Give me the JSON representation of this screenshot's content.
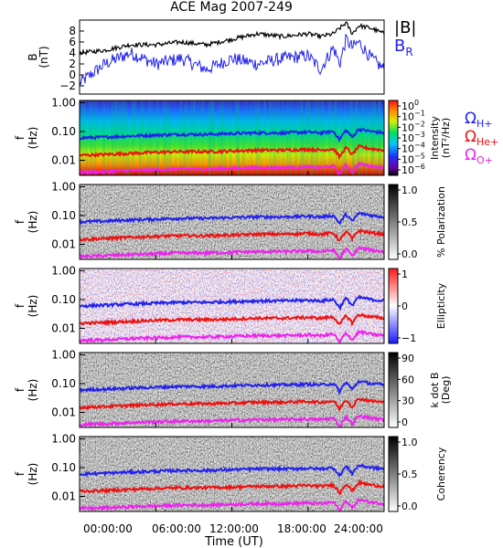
{
  "title": "ACE Mag 2007-249",
  "x_axis": {
    "label": "Time (UT)",
    "ticks": [
      "00:00:00",
      "06:00:00",
      "12:00:00",
      "18:00:00",
      "24:00:00"
    ],
    "range_hours": [
      0,
      24
    ]
  },
  "panels": [
    {
      "id": "field",
      "ylabel": "B",
      "yunit": "(nT)",
      "ticks": [
        "8",
        "6",
        "4",
        "2",
        "0",
        "−2"
      ],
      "tick_values": [
        8,
        6,
        4,
        2,
        0,
        -2
      ],
      "ylim": [
        -3.5,
        10
      ],
      "legend": [
        {
          "text": "|B|",
          "sub": "",
          "color": "#000000"
        },
        {
          "text": "B",
          "sub": "R",
          "color": "#2222ee"
        }
      ]
    },
    {
      "id": "intensity",
      "ylabel": "f",
      "yunit": "(Hz)",
      "ticks": [
        "1.00",
        "0.10",
        "0.01"
      ],
      "colorbar": {
        "type": "rainbow",
        "label_line1": "Intensity",
        "label_line2": "(nT²/Hz)",
        "ticks": [
          {
            "base": "10",
            "exp": "0"
          },
          {
            "base": "10",
            "exp": "−1"
          },
          {
            "base": "10",
            "exp": "−2"
          },
          {
            "base": "10",
            "exp": "−3"
          },
          {
            "base": "10",
            "exp": "−4"
          },
          {
            "base": "10",
            "exp": "−5"
          },
          {
            "base": "10",
            "exp": "−6"
          }
        ]
      },
      "legend": [
        {
          "text": "Ω",
          "sub": "H+",
          "color": "#2222ee"
        },
        {
          "text": "Ω",
          "sub": "He+",
          "color": "#ee1111"
        },
        {
          "text": "Ω",
          "sub": "O+",
          "color": "#ee22ee"
        }
      ]
    },
    {
      "id": "polarization",
      "ylabel": "f",
      "yunit": "(Hz)",
      "ticks": [
        "1.00",
        "0.10",
        "0.01"
      ],
      "colorbar": {
        "type": "gray",
        "label_line1": "% Polarization",
        "label_line2": "",
        "ticks": [
          {
            "base": "1.0"
          },
          {
            "base": "0.5"
          },
          {
            "base": "0.0"
          }
        ]
      }
    },
    {
      "id": "ellipticity",
      "ylabel": "f",
      "yunit": "(Hz)",
      "ticks": [
        "1.00",
        "0.10",
        "0.01"
      ],
      "colorbar": {
        "type": "bwr",
        "label_line1": "Ellipticity",
        "label_line2": "",
        "ticks": [
          {
            "base": "1"
          },
          {
            "base": "0"
          },
          {
            "base": "−1"
          }
        ]
      }
    },
    {
      "id": "kdotb",
      "ylabel": "f",
      "yunit": "(Hz)",
      "ticks": [
        "1.00",
        "0.10",
        "0.01"
      ],
      "colorbar": {
        "type": "gray",
        "label_line1": "k dot B",
        "label_line2": "(Deg)",
        "ticks": [
          {
            "base": "90"
          },
          {
            "base": "60"
          },
          {
            "base": "30"
          },
          {
            "base": "0"
          }
        ]
      }
    },
    {
      "id": "coherency",
      "ylabel": "f",
      "yunit": "(Hz)",
      "ticks": [
        "1.00",
        "0.10",
        "0.01"
      ],
      "colorbar": {
        "type": "gray",
        "label_line1": "Coherency",
        "label_line2": "",
        "ticks": [
          {
            "base": "1.0"
          },
          {
            "base": "0.5"
          },
          {
            "base": "0.0"
          }
        ]
      }
    }
  ],
  "colors": {
    "h_plus": "#2222ee",
    "he_plus": "#ee1111",
    "o_plus": "#ee22ee",
    "b_total": "#000000",
    "b_r": "#2222ee"
  },
  "chart_data": {
    "type": "line",
    "title": "ACE Mag 2007-249",
    "xlabel": "Time (UT)",
    "x_hours": [
      0,
      2,
      4,
      6,
      8,
      10,
      12,
      14,
      16,
      18,
      19,
      20,
      20.5,
      21,
      21.5,
      22,
      23,
      24
    ],
    "series": [
      {
        "name": "|B|",
        "unit": "nT",
        "values": [
          4.0,
          4.5,
          5.5,
          5.5,
          6.0,
          5.5,
          6.5,
          7.5,
          7.0,
          7.5,
          7.0,
          7.5,
          8.5,
          9.5,
          7.5,
          9.0,
          8.5,
          7.5
        ]
      },
      {
        "name": "B_R",
        "unit": "nT",
        "values": [
          -1.5,
          2.0,
          4.0,
          2.0,
          3.0,
          1.0,
          3.0,
          2.0,
          3.0,
          3.5,
          1.0,
          5.0,
          2.0,
          6.5,
          5.0,
          6.0,
          3.0,
          1.0
        ]
      },
      {
        "name": "Ω_H+",
        "unit": "Hz",
        "values": [
          0.06,
          0.064,
          0.07,
          0.075,
          0.08,
          0.08,
          0.085,
          0.09,
          0.09,
          0.095,
          0.09,
          0.1,
          0.05,
          0.11,
          0.06,
          0.12,
          0.1,
          0.09
        ]
      },
      {
        "name": "Ω_He+",
        "unit": "Hz",
        "values": [
          0.015,
          0.016,
          0.0175,
          0.019,
          0.02,
          0.02,
          0.021,
          0.0225,
          0.0225,
          0.024,
          0.0225,
          0.025,
          0.0125,
          0.0275,
          0.015,
          0.03,
          0.025,
          0.0225
        ]
      },
      {
        "name": "Ω_O+",
        "unit": "Hz",
        "values": [
          0.0038,
          0.004,
          0.0044,
          0.0047,
          0.005,
          0.005,
          0.0053,
          0.0056,
          0.0056,
          0.0059,
          0.0056,
          0.0063,
          0.0031,
          0.0069,
          0.0038,
          0.0075,
          0.0063,
          0.0056
        ]
      }
    ],
    "frequency_axis": {
      "scale": "log",
      "ylim_hz": [
        0.003,
        1.2
      ],
      "ticks": [
        1.0,
        0.1,
        0.01
      ]
    },
    "field_axis": {
      "ylim_nt": [
        -3.5,
        10
      ],
      "ticks": [
        8,
        6,
        4,
        2,
        0,
        -2
      ]
    }
  }
}
